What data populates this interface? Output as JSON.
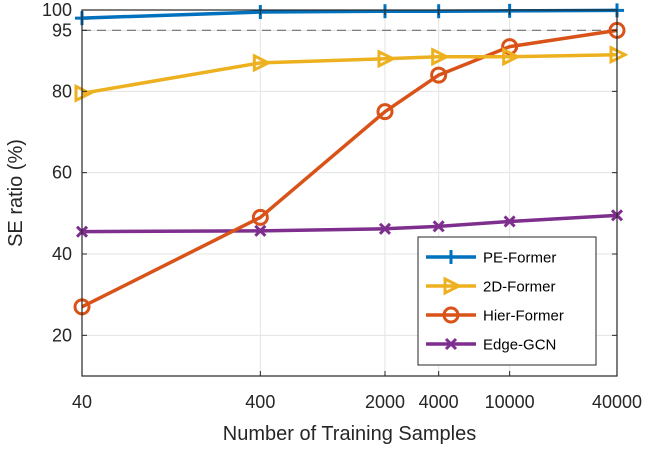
{
  "chart_data": {
    "type": "line",
    "xscale": "log",
    "x": [
      40,
      400,
      2000,
      4000,
      10000,
      40000
    ],
    "x_tick_labels": [
      "40",
      "400",
      "2000",
      "4000",
      "10000",
      "40000"
    ],
    "y_tick_values": [
      20,
      40,
      60,
      80,
      95,
      100
    ],
    "y_tick_labels": [
      "20",
      "40",
      "60",
      "80",
      "95",
      "100"
    ],
    "xlim": [
      40,
      40000
    ],
    "ylim": [
      10,
      100
    ],
    "xlabel": "Number of Training Samples",
    "ylabel": "SE ratio  (%)",
    "grid": true,
    "reference_line": {
      "y": 95,
      "style": "dashed"
    },
    "legend_position": "bottom-right",
    "series": [
      {
        "name": "PE-Former",
        "marker": "plus",
        "color": "#0072BD",
        "values": [
          98,
          99.5,
          99.7,
          99.7,
          99.8,
          99.9
        ]
      },
      {
        "name": "2D-Former",
        "marker": "triangle-right",
        "color": "#EDB120",
        "values": [
          79.5,
          87,
          88,
          88.5,
          88.5,
          89
        ]
      },
      {
        "name": "Hier-Former",
        "marker": "circle",
        "color": "#D95319",
        "values": [
          27,
          49,
          75,
          84,
          91,
          95
        ]
      },
      {
        "name": "Edge-GCN",
        "marker": "x",
        "color": "#7E2F8E",
        "values": [
          45.5,
          45.7,
          46.2,
          46.8,
          48,
          49.5
        ]
      }
    ]
  }
}
